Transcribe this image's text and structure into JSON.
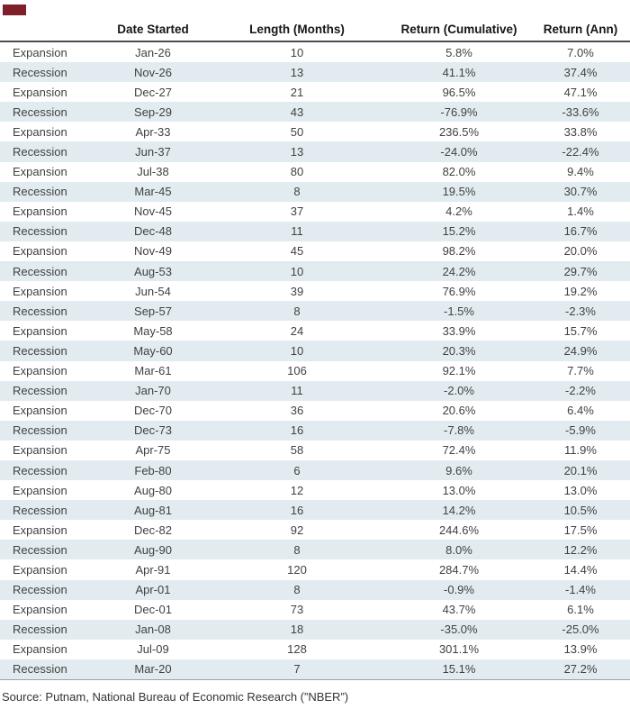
{
  "brand": {
    "color": "#7F1F2A"
  },
  "chart_data": {
    "type": "table",
    "columns": [
      "",
      "Date Started",
      "Length (Months)",
      "Return (Cumulative)",
      "Return (Ann)"
    ],
    "rows": [
      [
        "Expansion",
        "Jan-26",
        "10",
        "5.8%",
        "7.0%"
      ],
      [
        "Recession",
        "Nov-26",
        "13",
        "41.1%",
        "37.4%"
      ],
      [
        "Expansion",
        "Dec-27",
        "21",
        "96.5%",
        "47.1%"
      ],
      [
        "Recession",
        "Sep-29",
        "43",
        "-76.9%",
        "-33.6%"
      ],
      [
        "Expansion",
        "Apr-33",
        "50",
        "236.5%",
        "33.8%"
      ],
      [
        "Recession",
        "Jun-37",
        "13",
        "-24.0%",
        "-22.4%"
      ],
      [
        "Expansion",
        "Jul-38",
        "80",
        "82.0%",
        "9.4%"
      ],
      [
        "Recession",
        "Mar-45",
        "8",
        "19.5%",
        "30.7%"
      ],
      [
        "Expansion",
        "Nov-45",
        "37",
        "4.2%",
        "1.4%"
      ],
      [
        "Recession",
        "Dec-48",
        "11",
        "15.2%",
        "16.7%"
      ],
      [
        "Expansion",
        "Nov-49",
        "45",
        "98.2%",
        "20.0%"
      ],
      [
        "Recession",
        "Aug-53",
        "10",
        "24.2%",
        "29.7%"
      ],
      [
        "Expansion",
        "Jun-54",
        "39",
        "76.9%",
        "19.2%"
      ],
      [
        "Recession",
        "Sep-57",
        "8",
        "-1.5%",
        "-2.3%"
      ],
      [
        "Expansion",
        "May-58",
        "24",
        "33.9%",
        "15.7%"
      ],
      [
        "Recession",
        "May-60",
        "10",
        "20.3%",
        "24.9%"
      ],
      [
        "Expansion",
        "Mar-61",
        "106",
        "92.1%",
        "7.7%"
      ],
      [
        "Recession",
        "Jan-70",
        "11",
        "-2.0%",
        "-2.2%"
      ],
      [
        "Expansion",
        "Dec-70",
        "36",
        "20.6%",
        "6.4%"
      ],
      [
        "Recession",
        "Dec-73",
        "16",
        "-7.8%",
        "-5.9%"
      ],
      [
        "Expansion",
        "Apr-75",
        "58",
        "72.4%",
        "11.9%"
      ],
      [
        "Recession",
        "Feb-80",
        "6",
        "9.6%",
        "20.1%"
      ],
      [
        "Expansion",
        "Aug-80",
        "12",
        "13.0%",
        "13.0%"
      ],
      [
        "Recession",
        "Aug-81",
        "16",
        "14.2%",
        "10.5%"
      ],
      [
        "Expansion",
        "Dec-82",
        "92",
        "244.6%",
        "17.5%"
      ],
      [
        "Recession",
        "Aug-90",
        "8",
        "8.0%",
        "12.2%"
      ],
      [
        "Expansion",
        "Apr-91",
        "120",
        "284.7%",
        "14.4%"
      ],
      [
        "Recession",
        "Apr-01",
        "8",
        "-0.9%",
        "-1.4%"
      ],
      [
        "Expansion",
        "Dec-01",
        "73",
        "43.7%",
        "6.1%"
      ],
      [
        "Recession",
        "Jan-08",
        "18",
        "-35.0%",
        "-25.0%"
      ],
      [
        "Expansion",
        "Jul-09",
        "128",
        "301.1%",
        "13.9%"
      ],
      [
        "Recession",
        "Mar-20",
        "7",
        "15.1%",
        "27.2%"
      ]
    ],
    "row_band_color": "#e2ecf0",
    "legend_position": "none",
    "grid": false
  },
  "source_note": "Source: Putnam, National Bureau of Economic Research (”NBER”)"
}
